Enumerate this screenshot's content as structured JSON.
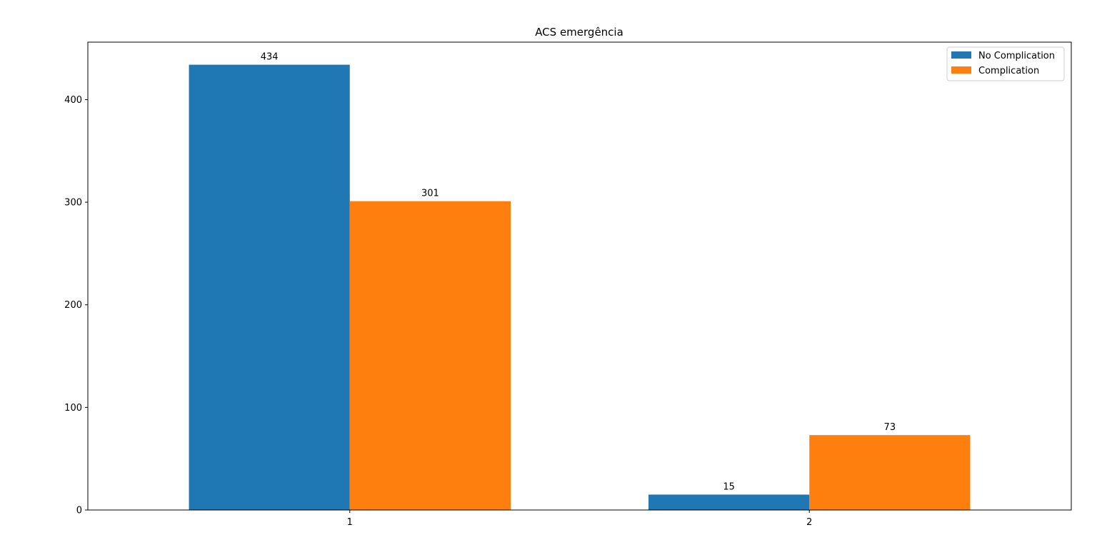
{
  "chart_data": {
    "type": "bar",
    "title": "ACS emergência",
    "xlabel": "",
    "ylabel": "",
    "categories": [
      "1",
      "2"
    ],
    "series": [
      {
        "name": "No Complication",
        "values": [
          434,
          15
        ],
        "color": "#1f77b4"
      },
      {
        "name": "Complication",
        "values": [
          301,
          73
        ],
        "color": "#ff7f0e"
      }
    ],
    "ylim": [
      0,
      456
    ],
    "yticks": [
      0,
      100,
      200,
      300,
      400
    ],
    "grid": false,
    "legend_position": "top-right"
  }
}
